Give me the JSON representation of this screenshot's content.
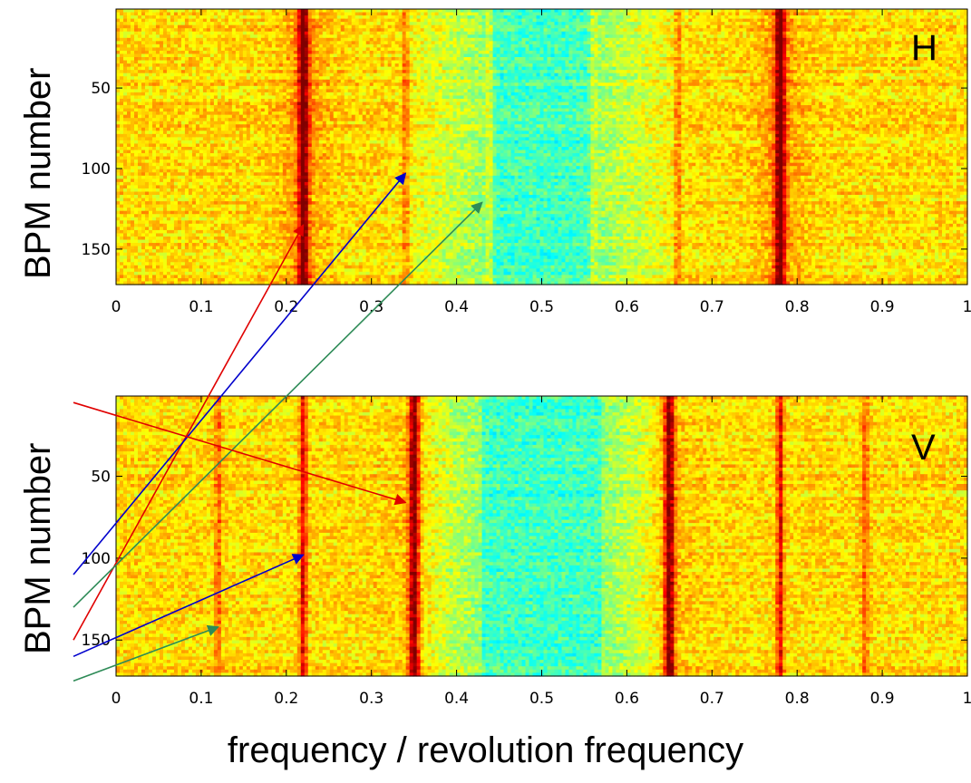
{
  "xlabel": "frequency / revolution frequency",
  "chart_data": [
    {
      "type": "heatmap",
      "panel_label": "H",
      "ylabel": "BPM number",
      "xlim": [
        0,
        1
      ],
      "ylim": [
        1,
        172
      ],
      "y_reversed": true,
      "xticks": [
        0,
        0.1,
        0.2,
        0.3,
        0.4,
        0.5,
        0.6,
        0.7,
        0.8,
        0.9,
        1
      ],
      "xtick_labels": [
        "0",
        "0.1",
        "0.2",
        "0.3",
        "0.4",
        "0.5",
        "0.6",
        "0.7",
        "0.8",
        "0.9",
        "1"
      ],
      "yticks": [
        50,
        100,
        150
      ],
      "ytick_labels": [
        "50",
        "100",
        "150"
      ],
      "colormap": "jet",
      "strong_lines": [
        0.22,
        0.78
      ],
      "weak_lines": [
        0.34,
        0.44,
        0.56,
        0.66
      ],
      "low_band": [
        0.44,
        0.56
      ]
    },
    {
      "type": "heatmap",
      "panel_label": "V",
      "ylabel": "BPM number",
      "xlim": [
        0,
        1
      ],
      "ylim": [
        1,
        172
      ],
      "y_reversed": true,
      "xticks": [
        0,
        0.1,
        0.2,
        0.3,
        0.4,
        0.5,
        0.6,
        0.7,
        0.8,
        0.9,
        1
      ],
      "xtick_labels": [
        "0",
        "0.1",
        "0.2",
        "0.3",
        "0.4",
        "0.5",
        "0.6",
        "0.7",
        "0.8",
        "0.9",
        "1"
      ],
      "yticks": [
        50,
        100,
        150
      ],
      "ytick_labels": [
        "50",
        "100",
        "150"
      ],
      "colormap": "jet",
      "strong_lines": [
        0.35,
        0.65
      ],
      "medium_lines": [
        0.22,
        0.78
      ],
      "weak_lines": [
        0.12,
        0.88
      ],
      "low_band": [
        0.43,
        0.57
      ]
    }
  ],
  "annotations": [
    {
      "color": "#e00000",
      "from": {
        "panel": 1,
        "x": -0.05,
        "y": 150
      },
      "to": {
        "panel": 0,
        "x": 0.22,
        "y": 135
      }
    },
    {
      "color": "#0000cc",
      "from": {
        "panel": 1,
        "x": -0.05,
        "y": 110
      },
      "to": {
        "panel": 0,
        "x": 0.34,
        "y": 103
      }
    },
    {
      "color": "#2e8b57",
      "from": {
        "panel": 1,
        "x": -0.05,
        "y": 130
      },
      "to": {
        "panel": 0,
        "x": 0.43,
        "y": 121
      }
    },
    {
      "color": "#e00000",
      "from": {
        "panel": 1,
        "x": -0.05,
        "y": 5
      },
      "to": {
        "panel": 1,
        "x": 0.34,
        "y": 66
      }
    },
    {
      "color": "#0000cc",
      "from": {
        "panel": 1,
        "x": -0.05,
        "y": 160
      },
      "to": {
        "panel": 1,
        "x": 0.22,
        "y": 98
      }
    },
    {
      "color": "#2e8b57",
      "from": {
        "panel": 1,
        "x": -0.05,
        "y": 175
      },
      "to": {
        "panel": 1,
        "x": 0.12,
        "y": 142
      }
    }
  ]
}
